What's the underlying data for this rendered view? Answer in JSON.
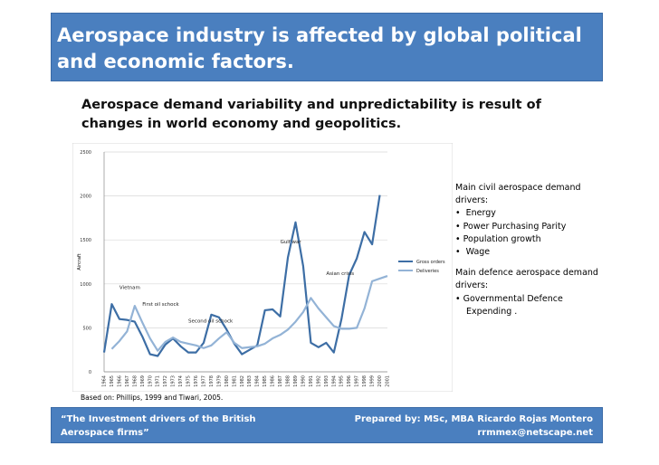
{
  "slide": {
    "title": "Aerospace industry is affected by global political and economic factors.",
    "subtitle": "Aerospace demand variability and unpredictability is result of changes in world economy and geopolitics.",
    "source": "Based on: Phillips, 1999 and Tiwari, 2005.",
    "colors": {
      "bar": "#4a7fbf",
      "gross": "#3d6ea5",
      "deliveries": "#93b3d6"
    }
  },
  "notes": {
    "civil_heading": "Main civil aerospace demand drivers:",
    "civil_items": [
      "Energy",
      "Power Purchasing Parity",
      "Population growth",
      "Wage"
    ],
    "defence_heading": "Main defence aerospace demand drivers:",
    "defence_items": [
      "Governmental Defence Expending ."
    ]
  },
  "footer": {
    "left": "“The Investment drivers of the British Aerospace firms”",
    "right_line1": "Prepared by: MSc, MBA Ricardo Rojas Montero",
    "right_line2": "rrmmex@netscape.net"
  },
  "chart_data": {
    "type": "line",
    "title": "",
    "xlabel": "",
    "ylabel": "Aircraft",
    "ylim": [
      0,
      2500
    ],
    "yticks": [
      0,
      500,
      1000,
      1500,
      2000,
      2500
    ],
    "categories": [
      "1964",
      "1965",
      "1966",
      "1967",
      "1968",
      "1969",
      "1970",
      "1971",
      "1972",
      "1973",
      "1974",
      "1975",
      "1976",
      "1977",
      "1978",
      "1979",
      "1980",
      "1981",
      "1982",
      "1983",
      "1984",
      "1985",
      "1986",
      "1987",
      "1988",
      "1989",
      "1990",
      "1991",
      "1992",
      "1993",
      "1994",
      "1995",
      "1996",
      "1997",
      "1998",
      "1999",
      "2000",
      "2001"
    ],
    "series": [
      {
        "name": "Gross orders",
        "values": [
          220,
          770,
          600,
          590,
          570,
          400,
          200,
          180,
          310,
          380,
          290,
          220,
          220,
          330,
          650,
          620,
          480,
          320,
          200,
          250,
          300,
          700,
          710,
          630,
          1300,
          1700,
          1200,
          330,
          280,
          330,
          220,
          600,
          1100,
          1290,
          1590,
          1450,
          2010,
          null
        ]
      },
      {
        "name": "Deliveries",
        "values": [
          null,
          260,
          350,
          460,
          750,
          560,
          380,
          240,
          340,
          390,
          340,
          320,
          300,
          270,
          300,
          380,
          450,
          330,
          270,
          280,
          290,
          320,
          380,
          420,
          480,
          570,
          680,
          840,
          720,
          620,
          520,
          490,
          490,
          500,
          720,
          1030,
          1060,
          1090
        ]
      }
    ],
    "annotations": [
      {
        "text": "Vietnam",
        "x": "1966",
        "y": 940
      },
      {
        "text": "First oil schock",
        "x": "1969",
        "y": 750
      },
      {
        "text": "Second oil schock",
        "x": "1975",
        "y": 560
      },
      {
        "text": "Gulf war",
        "x": "1987",
        "y": 1460
      },
      {
        "text": "Asian crisis",
        "x": "1993",
        "y": 1100
      }
    ],
    "legend": {
      "position": "right"
    }
  }
}
